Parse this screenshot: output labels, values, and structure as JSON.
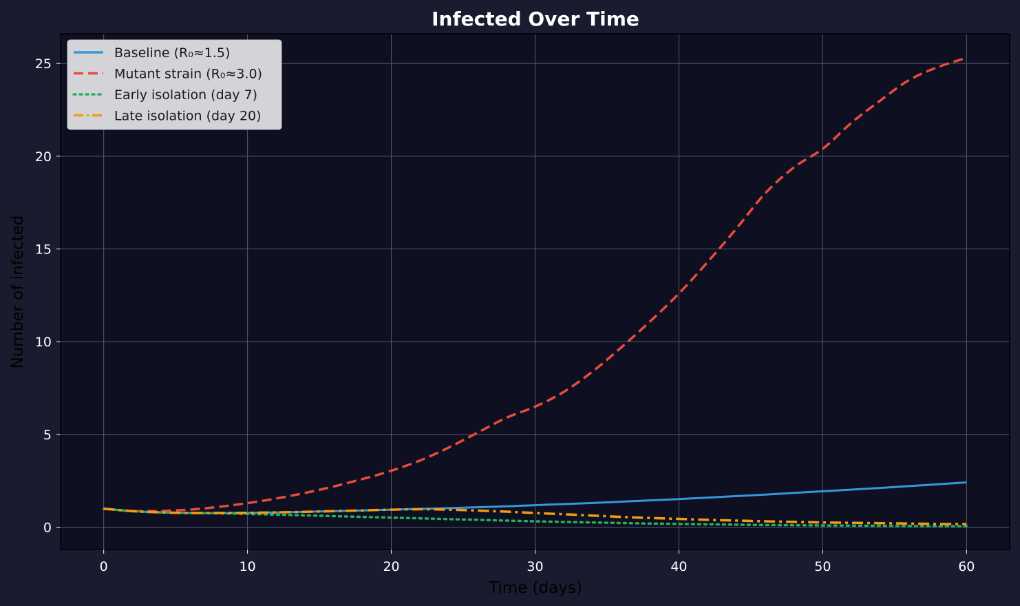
{
  "chart_data": {
    "type": "line",
    "title": "Infected Over Time",
    "xlabel": "Time (days)",
    "ylabel": "Number of infected",
    "xlim": [
      -3,
      63
    ],
    "ylim": [
      -1.2,
      26.6
    ],
    "xticks": [
      "0",
      "10",
      "20",
      "30",
      "40",
      "50",
      "60"
    ],
    "xtick_values": [
      0,
      10,
      20,
      30,
      40,
      50,
      60
    ],
    "yticks": [
      "0",
      "5",
      "10",
      "15",
      "20",
      "25"
    ],
    "ytick_values": [
      0,
      5,
      10,
      15,
      20,
      25
    ],
    "grid": true,
    "legend_position": "top-left",
    "x": [
      0,
      2,
      4,
      6,
      8,
      10,
      12,
      14,
      16,
      18,
      20,
      22,
      24,
      26,
      28,
      30,
      32,
      34,
      36,
      38,
      40,
      42,
      44,
      46,
      48,
      50,
      52,
      54,
      56,
      58,
      60
    ],
    "series": [
      {
        "name": "Baseline (R₀≈1.5)",
        "color": "#3498db",
        "style": "solid",
        "values": [
          1.0,
          0.87,
          0.8,
          0.77,
          0.77,
          0.78,
          0.8,
          0.83,
          0.87,
          0.91,
          0.95,
          0.99,
          1.03,
          1.08,
          1.13,
          1.19,
          1.25,
          1.31,
          1.38,
          1.45,
          1.52,
          1.6,
          1.68,
          1.76,
          1.85,
          1.94,
          2.03,
          2.12,
          2.22,
          2.32,
          2.42
        ]
      },
      {
        "name": "Mutant strain (R₀≈3.0)",
        "color": "#e74c3c",
        "style": "dashed",
        "values": [
          1.0,
          0.88,
          0.88,
          0.95,
          1.1,
          1.3,
          1.55,
          1.85,
          2.2,
          2.6,
          3.05,
          3.6,
          4.3,
          5.1,
          5.9,
          6.5,
          7.3,
          8.4,
          9.7,
          11.1,
          12.6,
          14.3,
          16.1,
          18.0,
          19.4,
          20.4,
          21.8,
          23.0,
          24.1,
          24.8,
          25.3
        ]
      },
      {
        "name": "Early isolation (day 7)",
        "color": "#27ae60",
        "style": "dotted",
        "values": [
          1.0,
          0.87,
          0.8,
          0.77,
          0.75,
          0.72,
          0.68,
          0.64,
          0.6,
          0.56,
          0.52,
          0.48,
          0.44,
          0.4,
          0.36,
          0.32,
          0.29,
          0.26,
          0.23,
          0.2,
          0.18,
          0.16,
          0.14,
          0.12,
          0.11,
          0.1,
          0.09,
          0.08,
          0.07,
          0.06,
          0.06
        ]
      },
      {
        "name": "Late isolation (day 20)",
        "color": "#f39c12",
        "style": "dashdot",
        "values": [
          1.0,
          0.87,
          0.8,
          0.77,
          0.77,
          0.78,
          0.8,
          0.83,
          0.87,
          0.91,
          0.95,
          0.97,
          0.95,
          0.9,
          0.84,
          0.77,
          0.7,
          0.63,
          0.56,
          0.5,
          0.45,
          0.4,
          0.36,
          0.32,
          0.29,
          0.26,
          0.24,
          0.22,
          0.2,
          0.18,
          0.17
        ]
      }
    ]
  },
  "colors": {
    "page_background": "#1a1b2e",
    "plot_background": "#0e0f20",
    "grid": "#5a5b6e",
    "legend_background": "#d4d4d8"
  }
}
